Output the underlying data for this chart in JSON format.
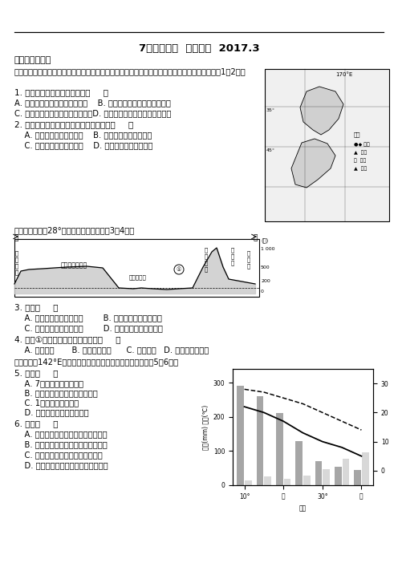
{
  "title": "7、澳大利亚  极地地区  2017.3",
  "section1": "一、单项选择题",
  "intro_text": "下图所示的某岛国有「世界净土」之称，为世界天然优质奶源生产国和乳畜产品出口国。据此回答1～2题。",
  "q1": "1. 该国乳业发展的优势条件是（     ）",
  "q1a": "A. 夏季高温多雨，适合牧草生长    B. 国内人口稠密，市场需求量大",
  "q1b": "C. 河流众多，为牛羊提供饮用水源D. 水陆交通便利，便于产品的运输",
  "q2": "2. 与日本相比，其经济发展的有利条件是（     ）",
  "q2a": "    A. 人口众多，劳动力丰富    B. 资源丰富，工业基础好",
  "q2b": "    C. 海岸曲折，多优良港湾    D. 环境优美，旅游业发达",
  "intro2": "下图为澳大利亚28°地形剖面图，读图回答3～4题。",
  "q3": "3. 图中（     ）",
  "q3a": "    A. 地形以山地和平原为主        B. 从东到西多为热带草原",
  "q3b": "    C. 东岸比西岸年降水量大        D. 东西沿岸自然景观相似",
  "q4": "4. 图中①地农业生产的主要特点是（     ）",
  "q4a": "    A. 自给自足       B. 产品商品率高      C. 刀耕火种   D. 劳动密集型农业",
  "intro3": "下图是某国142°E经线附近气温、降水量分布图，读图，回答5～6题。",
  "q5": "5. 图中（     ）",
  "q5a": "    A. 7月气温自北向南递减",
  "q5b": "    B. 甲地降水量季节变化比乙地小",
  "q5c": "    C. 1月降水量多北少南",
  "q5d": "    D. 甲地气温年较差比乙地大",
  "q6": "6. 该国（     ）",
  "q6a": "    A. 地处亚欧板块和太平洋板块交界处",
  "q6b": "    B. 南热同期，农业以水稺种植业为主",
  "q6c": "    C. 人口和城市主要分布在中部平原",
  "q6d": "    D. 珊瑚礁世界闻名，利于发展旅游业",
  "background_color": "#ffffff"
}
